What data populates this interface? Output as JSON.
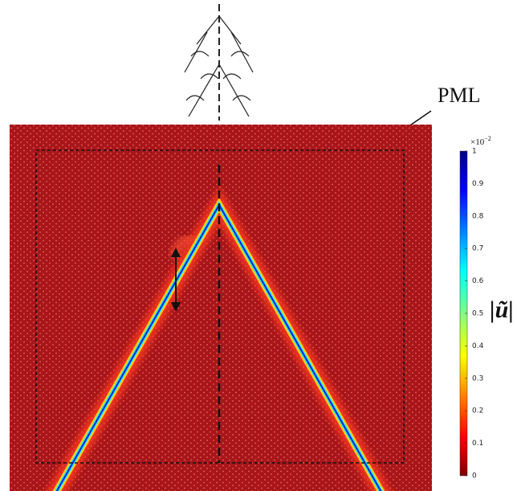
{
  "pml_label": "PML",
  "colorbar": {
    "lim": [
      0,
      1
    ],
    "ticks": [
      0,
      0.1,
      0.2,
      0.3,
      0.4,
      0.5,
      0.6,
      0.7,
      0.8,
      0.9,
      1
    ],
    "multiplier_base": "×10",
    "multiplier_exponent": "−2",
    "label": "|ũ|"
  }
}
